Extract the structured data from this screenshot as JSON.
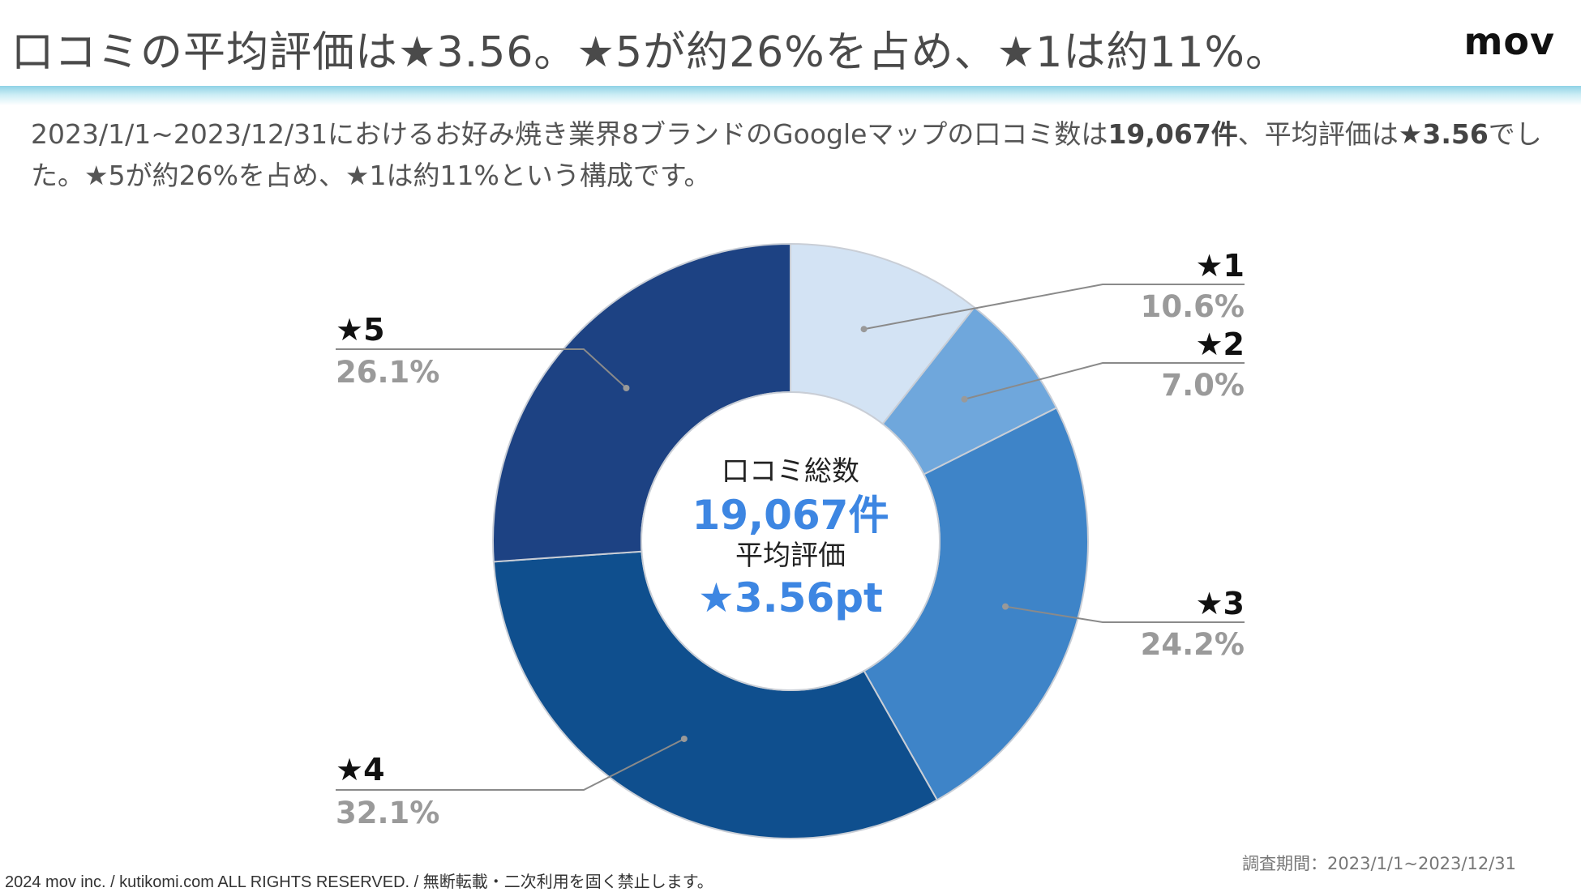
{
  "header": {
    "title": "口コミの平均評価は★3.56。★5が約26%を占め、★1は約11%。",
    "logo": "mov"
  },
  "lead": {
    "part1": "2023/1/1~2023/12/31におけるお好み焼き業界8ブランドのGoogleマップの口コミ数は",
    "total_bold": "19,067件",
    "part2": "、平均評価は",
    "avg_bold": "★3.56",
    "part3": "でした。★5が約26%を占め、★1は約11%という構成です。"
  },
  "chart_data": {
    "type": "pie",
    "variant": "donut",
    "categories": [
      "★1",
      "★2",
      "★3",
      "★4",
      "★5"
    ],
    "values": [
      10.6,
      7.0,
      24.2,
      32.1,
      26.1
    ],
    "value_labels": [
      "10.6%",
      "7.0%",
      "24.2%",
      "32.1%",
      "26.1%"
    ],
    "colors": [
      "#d3e3f4",
      "#6fa7dc",
      "#3e84c8",
      "#0f4f8e",
      "#1d4283"
    ],
    "center": {
      "label1": "口コミ総数",
      "value1": "19,067件",
      "label2": "平均評価",
      "value2": "★3.56pt"
    }
  },
  "footer": {
    "copyright": "2024 mov inc. / kutikomi.com ALL RIGHTS RESERVED. / 無断転載・二次利用を固く禁止します。",
    "period": "調査期間：2023/1/1~2023/12/31"
  }
}
